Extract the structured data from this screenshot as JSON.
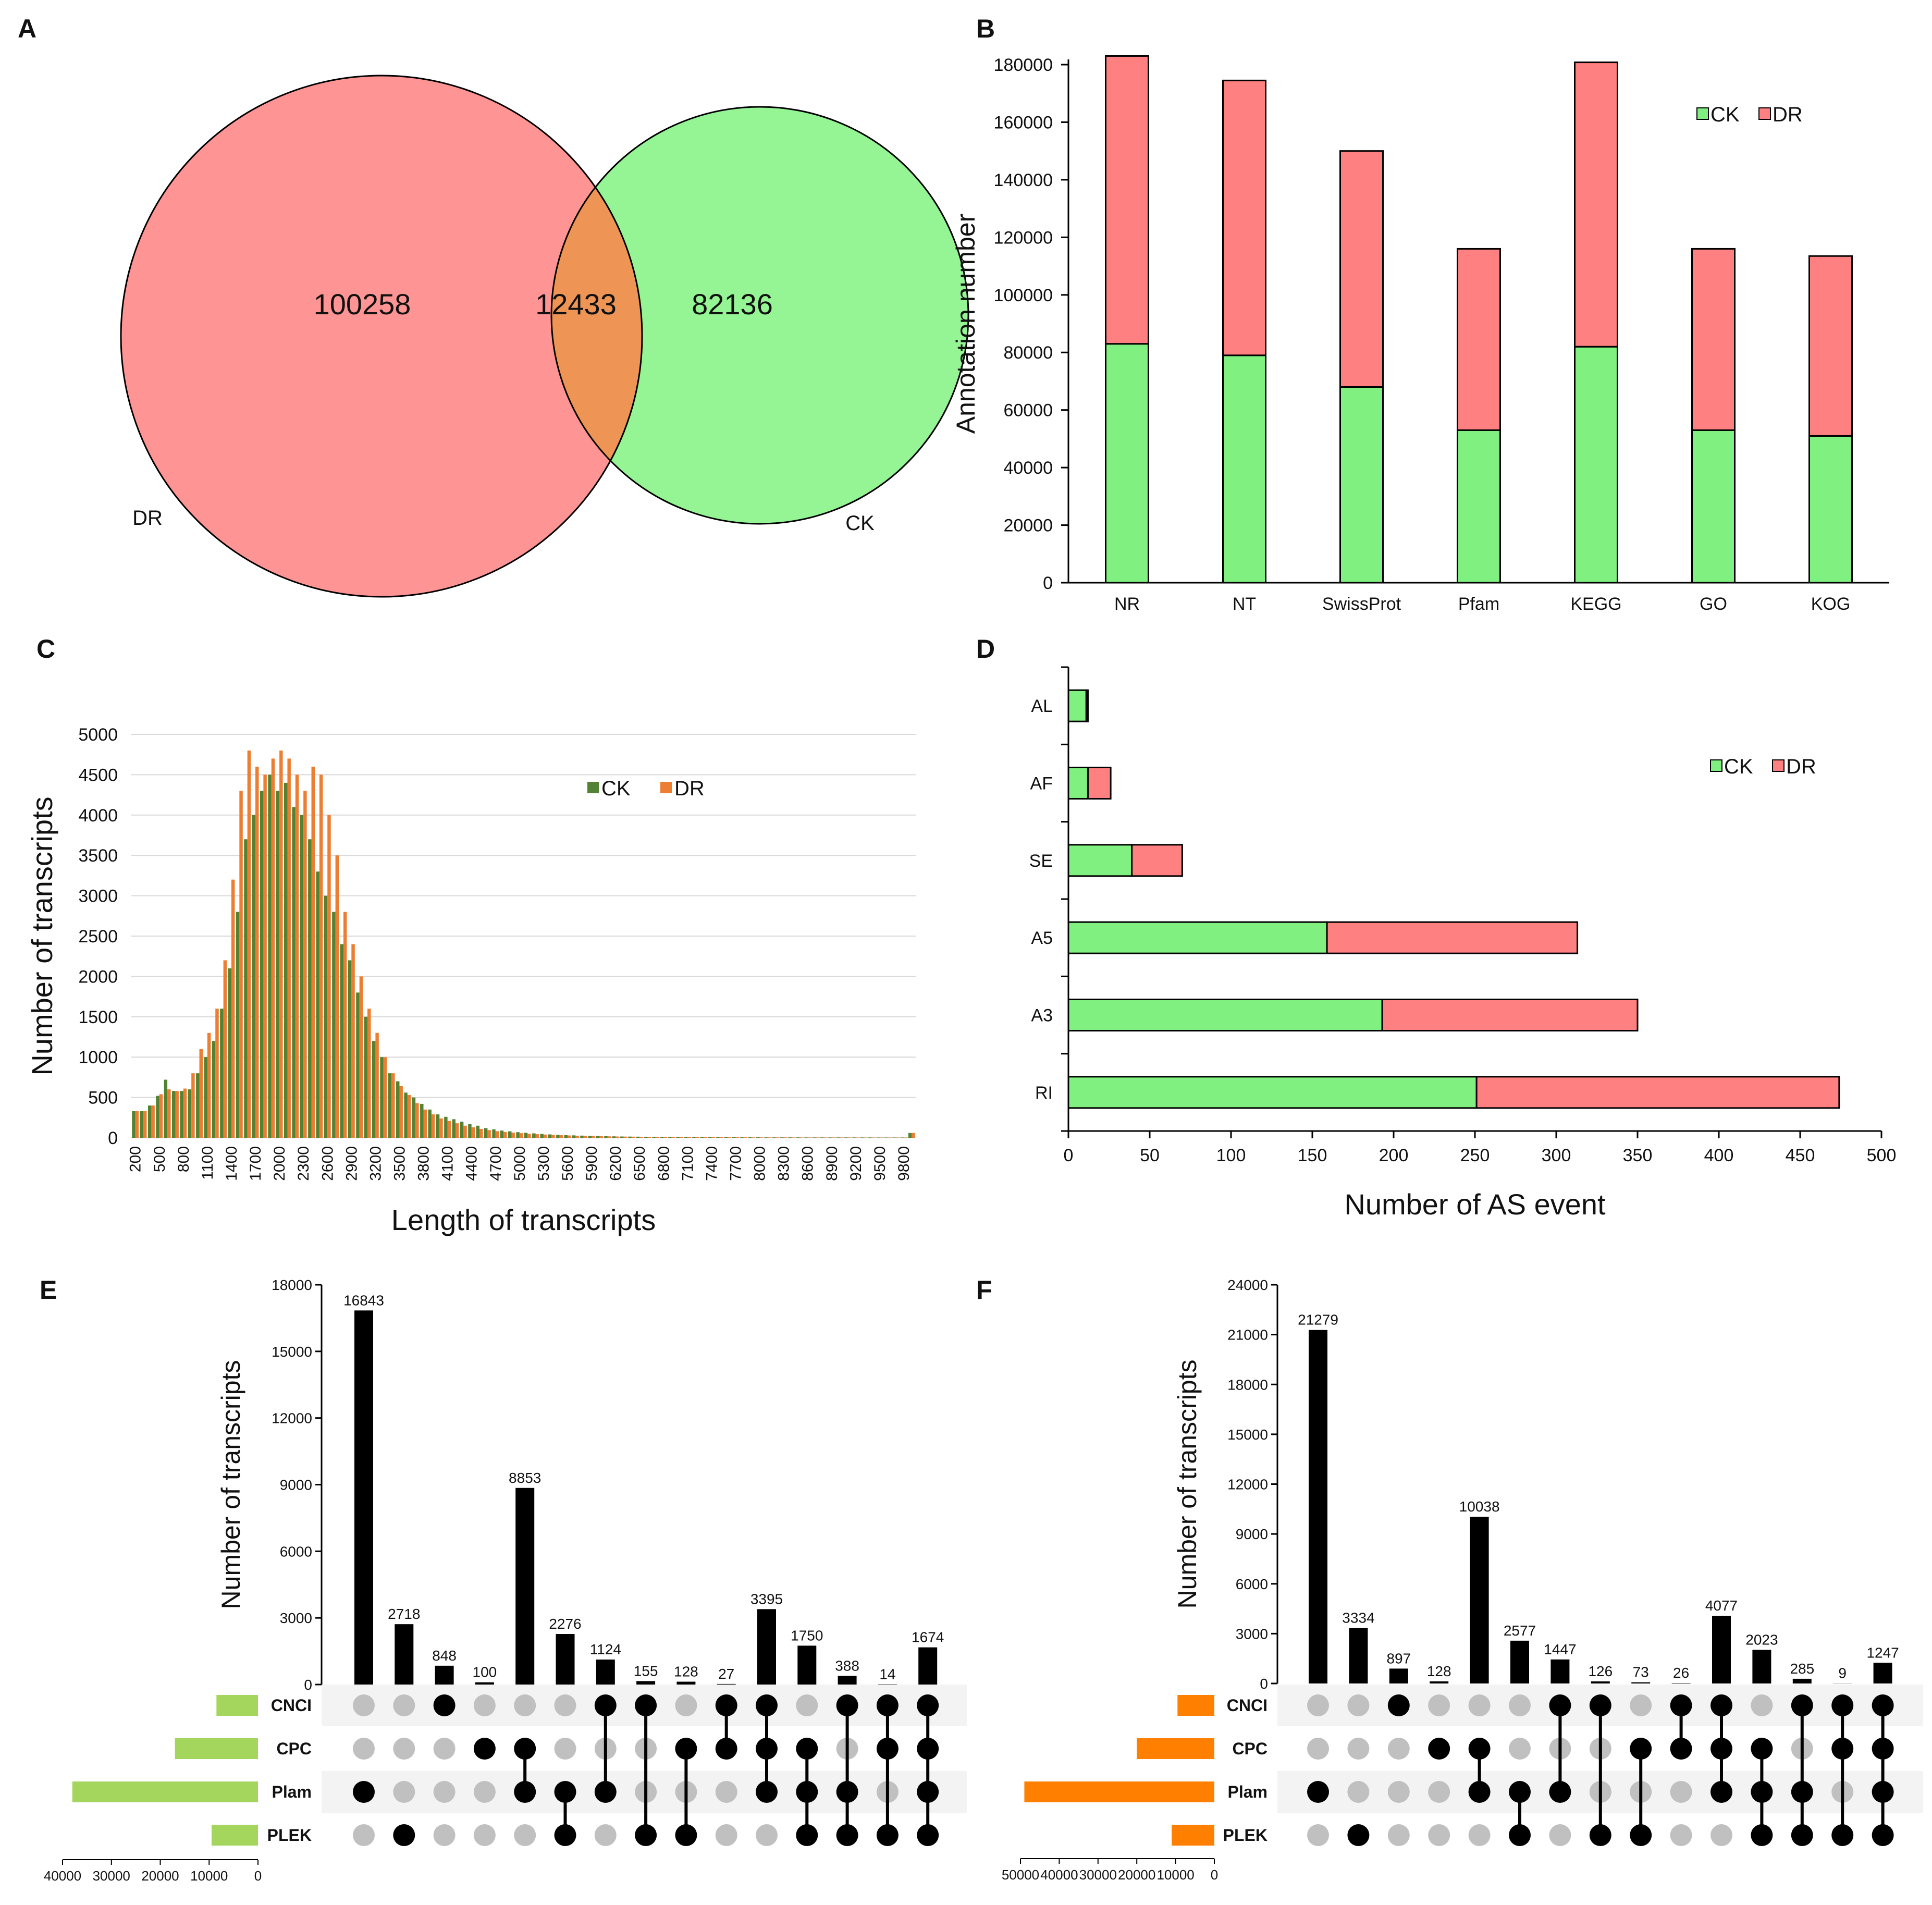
{
  "colors": {
    "dr_red": "#ff9494",
    "ck_green": "#95f595",
    "overlap": "#ee9455",
    "bar_green": "#80f080",
    "bar_red": "#ff8080",
    "hist_ck": "#548235",
    "hist_dr": "#ed7d31",
    "upset_e": "#a4d65e",
    "upset_f": "#ff8000",
    "dot_on": "#000000",
    "dot_off": "#c0c0c0",
    "band": "#f3f3f3"
  },
  "panels": {
    "A": "A",
    "B": "B",
    "C": "C",
    "D": "D",
    "E": "E",
    "F": "F"
  },
  "chart_data": [
    {
      "panel": "A",
      "type": "venn",
      "sets": [
        "DR",
        "CK"
      ],
      "only_DR": "100258",
      "both": "12433",
      "only_CK": "82136"
    },
    {
      "panel": "B",
      "type": "bar",
      "stacked": true,
      "categories": [
        "NR",
        "NT",
        "SwissProt",
        "Pfam",
        "KEGG",
        "GO",
        "KOG"
      ],
      "series": [
        {
          "name": "CK",
          "values": [
            83000,
            79000,
            68000,
            53000,
            82000,
            53000,
            51000
          ]
        },
        {
          "name": "DR",
          "values": [
            100000,
            95500,
            82000,
            63000,
            98800,
            63000,
            62500
          ]
        }
      ],
      "ylabel": "Annotation number",
      "ylim": [
        0,
        180000
      ],
      "yticks": [
        "0",
        "20000",
        "40000",
        "60000",
        "80000",
        "100000",
        "120000",
        "140000",
        "160000",
        "180000"
      ],
      "legend": [
        "CK",
        "DR"
      ]
    },
    {
      "panel": "C",
      "type": "bar",
      "xlabel": "Length of transcripts",
      "ylabel": "Number of transcripts",
      "ylim": [
        0,
        5000
      ],
      "yticks": [
        "0",
        "500",
        "1000",
        "1500",
        "2000",
        "2500",
        "3000",
        "3500",
        "4000",
        "4500",
        "5000"
      ],
      "xticks": [
        "200",
        "500",
        "800",
        "1100",
        "1400",
        "1700",
        "2000",
        "2300",
        "2600",
        "2900",
        "3200",
        "3500",
        "3800",
        "4100",
        "4400",
        "4700",
        "5000",
        "5300",
        "5600",
        "5900",
        "6200",
        "6500",
        "6800",
        "7100",
        "7400",
        "7700",
        "8000",
        "8300",
        "8600",
        "8900",
        "9200",
        "9500",
        "9800"
      ],
      "bin_start": 200,
      "bin_width": 100,
      "series": [
        {
          "name": "CK",
          "values": [
            330,
            330,
            400,
            520,
            720,
            580,
            580,
            600,
            800,
            1000,
            1200,
            1600,
            2100,
            2800,
            3700,
            4000,
            4300,
            4500,
            4300,
            4400,
            4100,
            4000,
            3700,
            3300,
            3000,
            2800,
            2400,
            2200,
            1800,
            1500,
            1200,
            1000,
            800,
            700,
            560,
            500,
            420,
            350,
            290,
            260,
            230,
            200,
            170,
            150,
            120,
            105,
            90,
            80,
            70,
            62,
            55,
            48,
            42,
            37,
            33,
            30,
            27,
            24,
            22,
            20,
            18,
            16,
            15,
            14,
            13,
            12,
            11,
            10,
            10,
            9,
            9,
            8,
            8,
            7,
            7,
            7,
            6,
            6,
            6,
            5,
            5,
            5,
            5,
            5,
            4,
            4,
            4,
            4,
            4,
            4,
            4,
            4,
            4,
            3,
            3,
            3,
            3,
            60
          ]
        },
        {
          "name": "DR",
          "values": [
            330,
            330,
            400,
            540,
            600,
            580,
            610,
            800,
            1100,
            1300,
            1600,
            2200,
            3200,
            4300,
            4800,
            4600,
            4500,
            4700,
            4800,
            4700,
            4500,
            4300,
            4600,
            4500,
            4000,
            3500,
            2800,
            2400,
            2000,
            1600,
            1300,
            1000,
            800,
            640,
            530,
            430,
            350,
            290,
            240,
            210,
            180,
            150,
            130,
            110,
            95,
            82,
            72,
            64,
            57,
            50,
            45,
            40,
            36,
            32,
            29,
            26,
            24,
            22,
            20,
            18,
            16,
            15,
            14,
            13,
            12,
            11,
            10,
            9,
            9,
            8,
            8,
            7,
            7,
            7,
            6,
            6,
            6,
            5,
            5,
            5,
            5,
            5,
            4,
            4,
            4,
            4,
            4,
            4,
            4,
            4,
            3,
            3,
            3,
            3,
            3,
            3,
            3,
            60
          ]
        }
      ],
      "legend": [
        "CK",
        "DR"
      ]
    },
    {
      "panel": "D",
      "type": "bar",
      "orientation": "horizontal",
      "stacked": true,
      "categories": [
        "AL",
        "AF",
        "SE",
        "A5",
        "A3",
        "RI"
      ],
      "series": [
        {
          "name": "CK",
          "values": [
            11,
            12,
            39,
            159,
            193,
            251
          ]
        },
        {
          "name": "DR",
          "values": [
            1,
            14,
            31,
            154,
            157,
            223
          ]
        }
      ],
      "xlabel": "Number of AS event",
      "xlim": [
        0,
        500
      ],
      "xticks": [
        "0",
        "50",
        "100",
        "150",
        "200",
        "250",
        "300",
        "350",
        "400",
        "450",
        "500"
      ],
      "legend": [
        "CK",
        "DR"
      ]
    },
    {
      "panel": "E",
      "type": "upset",
      "ylabel": "Number of transcripts",
      "ylim": [
        0,
        18000
      ],
      "yticks": [
        "0",
        "3000",
        "6000",
        "9000",
        "12000",
        "15000",
        "18000"
      ],
      "sets": [
        "CNCI",
        "CPC",
        "Plam",
        "PLEK"
      ],
      "set_sizes": [
        8500,
        17000,
        38000,
        9500
      ],
      "set_xlim": [
        0,
        40000
      ],
      "set_ticks": [
        "40000",
        "30000",
        "20000",
        "10000",
        "0"
      ],
      "intersections": [
        {
          "label": "16843",
          "value": 16843,
          "members": [
            2
          ]
        },
        {
          "label": "2718",
          "value": 2718,
          "members": [
            3
          ]
        },
        {
          "label": "848",
          "value": 848,
          "members": [
            0
          ]
        },
        {
          "label": "100",
          "value": 100,
          "members": [
            1
          ]
        },
        {
          "label": "8853",
          "value": 8853,
          "members": [
            1,
            2
          ]
        },
        {
          "label": "2276",
          "value": 2276,
          "members": [
            2,
            3
          ]
        },
        {
          "label": "1124",
          "value": 1124,
          "members": [
            0,
            2
          ]
        },
        {
          "label": "155",
          "value": 155,
          "members": [
            0,
            3
          ]
        },
        {
          "label": "128",
          "value": 128,
          "members": [
            1,
            3
          ]
        },
        {
          "label": "27",
          "value": 27,
          "members": [
            0,
            1
          ]
        },
        {
          "label": "3395",
          "value": 3395,
          "members": [
            0,
            1,
            2
          ]
        },
        {
          "label": "1750",
          "value": 1750,
          "members": [
            1,
            2,
            3
          ]
        },
        {
          "label": "388",
          "value": 388,
          "members": [
            0,
            2,
            3
          ]
        },
        {
          "label": "14",
          "value": 14,
          "members": [
            0,
            1,
            3
          ]
        },
        {
          "label": "1674",
          "value": 1674,
          "members": [
            0,
            1,
            2,
            3
          ]
        }
      ]
    },
    {
      "panel": "F",
      "type": "upset",
      "ylabel": "Number of transcripts",
      "ylim": [
        0,
        24000
      ],
      "yticks": [
        "0",
        "3000",
        "6000",
        "9000",
        "12000",
        "15000",
        "18000",
        "21000",
        "24000"
      ],
      "sets": [
        "CNCI",
        "CPC",
        "Plam",
        "PLEK"
      ],
      "set_sizes": [
        9500,
        20000,
        49000,
        11000
      ],
      "set_xlim": [
        0,
        50000
      ],
      "set_ticks": [
        "50000",
        "40000",
        "30000",
        "20000",
        "10000",
        "0"
      ],
      "intersections": [
        {
          "label": "21279",
          "value": 21279,
          "members": [
            2
          ]
        },
        {
          "label": "3334",
          "value": 3334,
          "members": [
            3
          ]
        },
        {
          "label": "897",
          "value": 897,
          "members": [
            0
          ]
        },
        {
          "label": "128",
          "value": 128,
          "members": [
            1
          ]
        },
        {
          "label": "10038",
          "value": 10038,
          "members": [
            1,
            2
          ]
        },
        {
          "label": "2577",
          "value": 2577,
          "members": [
            2,
            3
          ]
        },
        {
          "label": "1447",
          "value": 1447,
          "members": [
            0,
            2
          ]
        },
        {
          "label": "126",
          "value": 126,
          "members": [
            0,
            3
          ]
        },
        {
          "label": "73",
          "value": 73,
          "members": [
            1,
            3
          ]
        },
        {
          "label": "26",
          "value": 26,
          "members": [
            0,
            1
          ]
        },
        {
          "label": "4077",
          "value": 4077,
          "members": [
            0,
            1,
            2
          ]
        },
        {
          "label": "2023",
          "value": 2023,
          "members": [
            1,
            2,
            3
          ]
        },
        {
          "label": "285",
          "value": 285,
          "members": [
            0,
            2,
            3
          ]
        },
        {
          "label": "9",
          "value": 9,
          "members": [
            0,
            1,
            3
          ]
        },
        {
          "label": "1247",
          "value": 1247,
          "members": [
            0,
            1,
            2,
            3
          ]
        }
      ]
    }
  ]
}
